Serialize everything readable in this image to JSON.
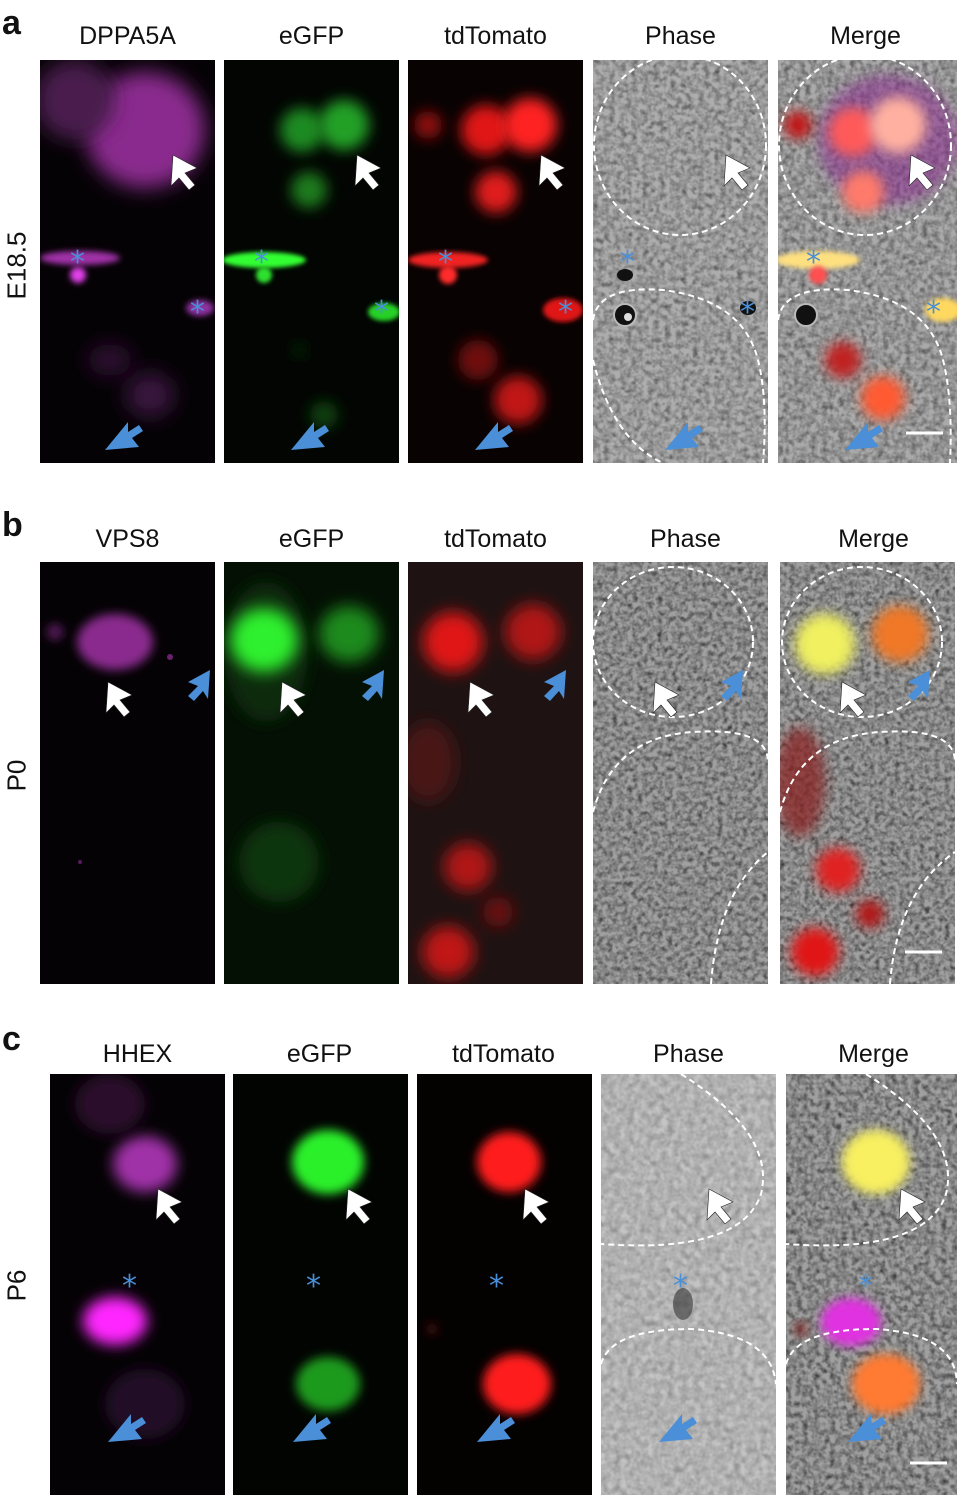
{
  "panels": [
    {
      "letter": "a",
      "row_label": "E18.5",
      "columns": [
        "DPPA5A",
        "eGFP",
        "tdTomato",
        "Phase",
        "Merge"
      ]
    },
    {
      "letter": "b",
      "row_label": "P0",
      "columns": [
        "VPS8",
        "eGFP",
        "tdTomato",
        "Phase",
        "Merge"
      ]
    },
    {
      "letter": "c",
      "row_label": "P6",
      "columns": [
        "HHEX",
        "eGFP",
        "tdTomato",
        "Phase",
        "Merge"
      ]
    }
  ],
  "channel_colors": {
    "marker": "#c040c8",
    "egfp": "#22e022",
    "tdtomato": "#ff2020",
    "merge_yellow": "#f8f060",
    "merge_orange": "#ff8030",
    "asterisk": "#4a8fd8",
    "white_arrow": "#ffffff",
    "blue_arrow": "#4a8fd8"
  }
}
